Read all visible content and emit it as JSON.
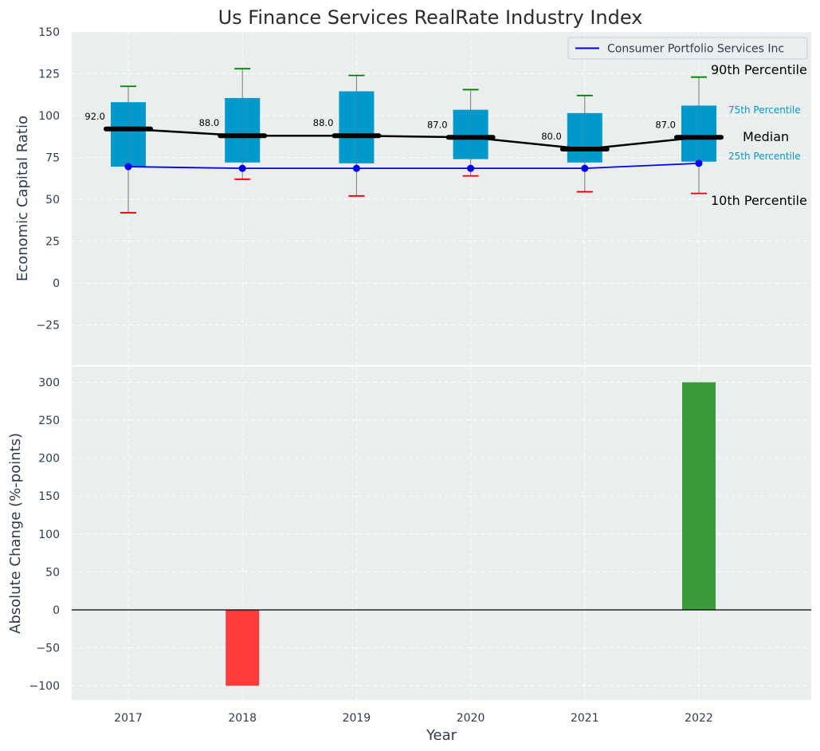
{
  "chart_data": [
    {
      "type": "box",
      "title": "Us Finance Services RealRate Industry Index",
      "ylabel": "Economic Capital Ratio",
      "xlabel": "",
      "ylim": [
        -50,
        150
      ],
      "yticks": [
        -25,
        0,
        25,
        50,
        75,
        100,
        125,
        150
      ],
      "ytick_labels": [
        "−25",
        "0",
        "25",
        "50",
        "75",
        "100",
        "125",
        "150"
      ],
      "categories": [
        "2017",
        "2018",
        "2019",
        "2020",
        "2021",
        "2022"
      ],
      "boxes": [
        {
          "year": "2017",
          "p10": 42,
          "p25": 69.5,
          "median": 92,
          "p75": 108,
          "p90": 117.5
        },
        {
          "year": "2018",
          "p10": 62,
          "p25": 72,
          "median": 88,
          "p75": 110.5,
          "p90": 128
        },
        {
          "year": "2019",
          "p10": 52,
          "p25": 71.5,
          "median": 88,
          "p75": 114.5,
          "p90": 124
        },
        {
          "year": "2020",
          "p10": 64,
          "p25": 74,
          "median": 87,
          "p75": 103.5,
          "p90": 115.5
        },
        {
          "year": "2021",
          "p10": 54.5,
          "p25": 72,
          "median": 80,
          "p75": 101.5,
          "p90": 112
        },
        {
          "year": "2022",
          "p10": 53.5,
          "p25": 72.5,
          "median": 87,
          "p75": 106,
          "p90": 123
        }
      ],
      "median_labels": [
        "92.0",
        "88.0",
        "88.0",
        "87.0",
        "80.0",
        "87.0"
      ],
      "series": [
        {
          "name": "Consumer Portfolio Services Inc",
          "values": [
            69.5,
            68.5,
            68.5,
            68.5,
            68.5,
            71.5
          ],
          "color": "#0000ee"
        }
      ],
      "legend_position": "top-right",
      "annotations": {
        "p90": "90th Percentile",
        "p75": "75th Percentile",
        "median": "Median",
        "p25": "25th Percentile",
        "p10": "10th Percentile"
      },
      "colors": {
        "box": "#0099cc",
        "p90_cap": "#008000",
        "p10_cap": "#dd0000",
        "median": "#000000",
        "bg": "#eaeeef"
      }
    },
    {
      "type": "bar",
      "ylabel": "Absolute Change (%-points)",
      "xlabel": "Year",
      "ylim": [
        -118,
        320
      ],
      "yticks": [
        -100,
        -50,
        0,
        50,
        100,
        150,
        200,
        250,
        300
      ],
      "ytick_labels": [
        "−100",
        "−50",
        "0",
        "50",
        "100",
        "150",
        "200",
        "250",
        "300"
      ],
      "categories": [
        "2017",
        "2018",
        "2019",
        "2020",
        "2021",
        "2022"
      ],
      "values": [
        0,
        -100,
        0,
        0,
        0,
        300
      ],
      "colors": {
        "positive": "#3a9b3c",
        "negative": "#ff3b3b"
      }
    }
  ]
}
